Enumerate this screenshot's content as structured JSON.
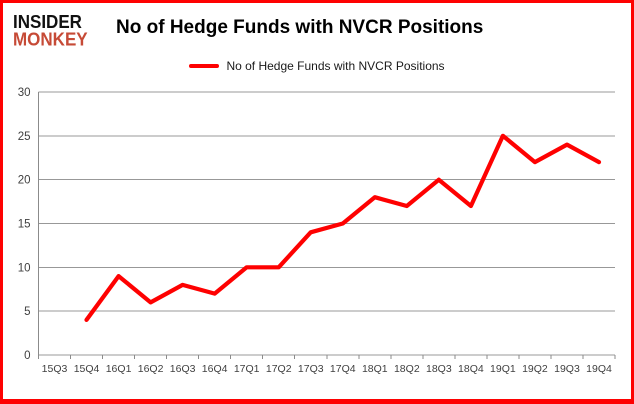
{
  "logo": {
    "line1": "INSIDER",
    "line2": "MONKEY"
  },
  "header": {
    "title": "No of Hedge Funds with NVCR Positions"
  },
  "legend": {
    "label": "No of Hedge Funds with NVCR Positions"
  },
  "colors": {
    "series": "#fe0101",
    "border": "#fe0101",
    "logo_accent": "#c64a36",
    "grid": "#989898",
    "axis": "#8b8b8b",
    "tick_text": "#3f3f3f"
  },
  "chart_data": {
    "type": "line",
    "title": "No of Hedge Funds with NVCR Positions",
    "categories": [
      "15Q3",
      "15Q4",
      "16Q1",
      "16Q2",
      "16Q3",
      "16Q4",
      "17Q1",
      "17Q2",
      "17Q3",
      "17Q4",
      "18Q1",
      "18Q2",
      "18Q3",
      "18Q4",
      "19Q1",
      "19Q2",
      "19Q3",
      "19Q4"
    ],
    "series": [
      {
        "name": "No of Hedge Funds with NVCR Positions",
        "values": [
          null,
          4,
          9,
          6,
          8,
          7,
          10,
          10,
          14,
          15,
          18,
          17,
          20,
          17,
          25,
          22,
          24,
          22
        ]
      }
    ],
    "ylim": [
      0,
      30
    ],
    "yticks": [
      0,
      5,
      10,
      15,
      20,
      25,
      30
    ],
    "grid": true,
    "legend_position": "top-center"
  }
}
